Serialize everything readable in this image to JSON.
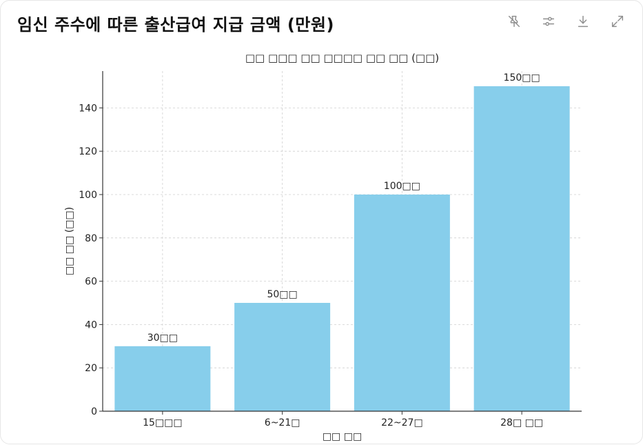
{
  "header": {
    "title": "임신 주수에 따른 출산급여 지급 금액 (만원)"
  },
  "toolbar": {
    "icons": [
      "pin-off-icon",
      "sliders-icon",
      "download-icon",
      "expand-icon"
    ]
  },
  "chart_data": {
    "type": "bar",
    "title": "□□ □□□ □□ □□□□ □□ □□ (□□)",
    "xlabel": "□□ □□",
    "ylabel": "□□ □□ (□□)",
    "categories": [
      "15□□□",
      "6~21□",
      "22~27□",
      "28□ □□"
    ],
    "values": [
      30,
      50,
      100,
      150
    ],
    "value_labels": [
      "30□□",
      "50□□",
      "100□□",
      "150□□"
    ],
    "ylim": [
      0,
      157
    ],
    "yticks": [
      0,
      20,
      40,
      60,
      80,
      100,
      120,
      140
    ],
    "grid": true,
    "bar_color": "#87ceeb"
  }
}
